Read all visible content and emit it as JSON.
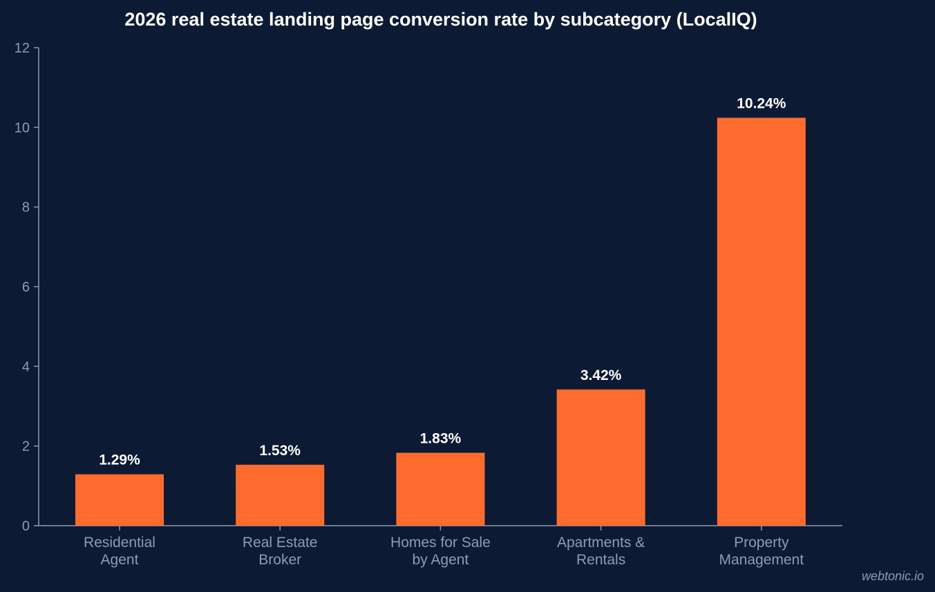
{
  "chart_data": {
    "type": "bar",
    "title": "2026 real estate landing page conversion rate by subcategory (LocalIQ)",
    "categories": [
      [
        "Residential",
        "Agent"
      ],
      [
        "Real Estate",
        "Broker"
      ],
      [
        "Homes for Sale",
        "by Agent"
      ],
      [
        "Apartments &",
        "Rentals"
      ],
      [
        "Property",
        "Management"
      ]
    ],
    "values": [
      1.29,
      1.53,
      1.83,
      3.42,
      10.24
    ],
    "data_labels": [
      "1.29%",
      "1.53%",
      "1.83%",
      "3.42%",
      "10.24%"
    ],
    "ylim": [
      0,
      12
    ],
    "yticks": [
      0,
      2,
      4,
      6,
      8,
      10,
      12
    ],
    "xlabel": "",
    "ylabel": "",
    "grid": false,
    "colors": {
      "background": "#0c1b33",
      "bar": "#ff6b2c",
      "axis": "#8f9bb0",
      "text": "#ffffff"
    }
  },
  "watermark": "webtonic.io"
}
